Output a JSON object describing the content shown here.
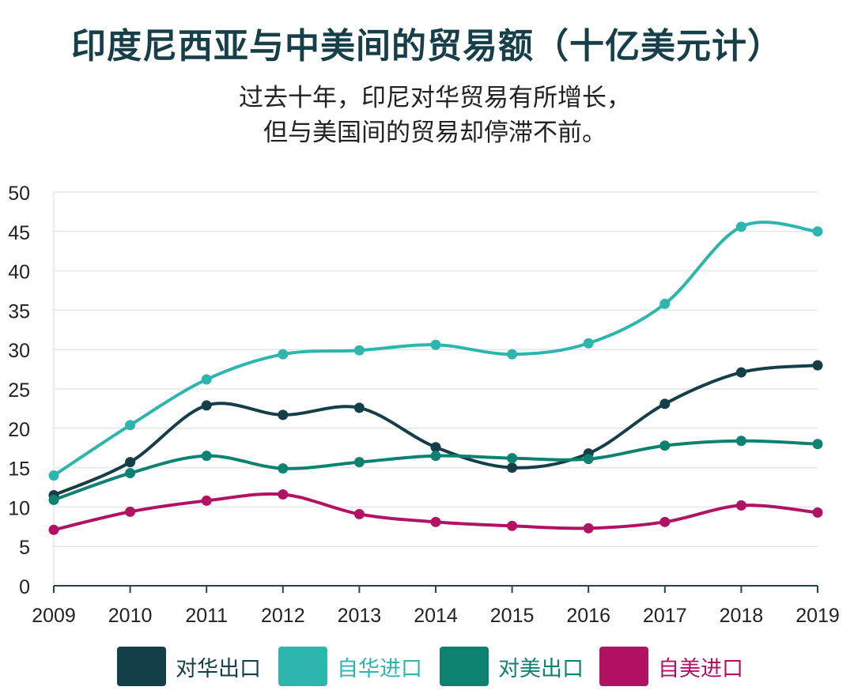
{
  "title": "印度尼西亚与中美间的贸易额（十亿美元计）",
  "subtitle_lines": [
    "过去十年，印尼对华贸易有所增长，",
    "但与美国间的贸易却停滞不前。"
  ],
  "chart_data": {
    "type": "line",
    "title": "印度尼西亚与中美间的贸易额（十亿美元计）",
    "subtitle": "过去十年，印尼对华贸易有所增长，但与美国间的贸易却停滞不前。",
    "xlabel": "",
    "ylabel": "",
    "x": [
      "2009",
      "2010",
      "2011",
      "2012",
      "2013",
      "2014",
      "2015",
      "2016",
      "2017",
      "2018",
      "2019"
    ],
    "ylim": [
      0,
      50
    ],
    "yticks": [
      0,
      5,
      10,
      15,
      20,
      25,
      30,
      35,
      40,
      45,
      50
    ],
    "grid": true,
    "legend_position": "bottom",
    "series": [
      {
        "name": "对华出口",
        "color": "#153f48",
        "values": [
          11.5,
          15.7,
          22.9,
          21.7,
          22.6,
          17.6,
          15.0,
          16.8,
          23.1,
          27.1,
          28.0
        ]
      },
      {
        "name": "自华进口",
        "color": "#2cb6ad",
        "values": [
          14.0,
          20.4,
          26.2,
          29.4,
          29.9,
          30.6,
          29.4,
          30.8,
          35.8,
          45.6,
          45.0
        ]
      },
      {
        "name": "对美出口",
        "color": "#0d8271",
        "values": [
          10.9,
          14.3,
          16.5,
          14.9,
          15.7,
          16.5,
          16.2,
          16.1,
          17.8,
          18.4,
          18.0
        ]
      },
      {
        "name": "自美进口",
        "color": "#b21263",
        "values": [
          7.1,
          9.4,
          10.8,
          11.6,
          9.1,
          8.1,
          7.6,
          7.3,
          8.1,
          10.2,
          9.3
        ]
      }
    ]
  }
}
